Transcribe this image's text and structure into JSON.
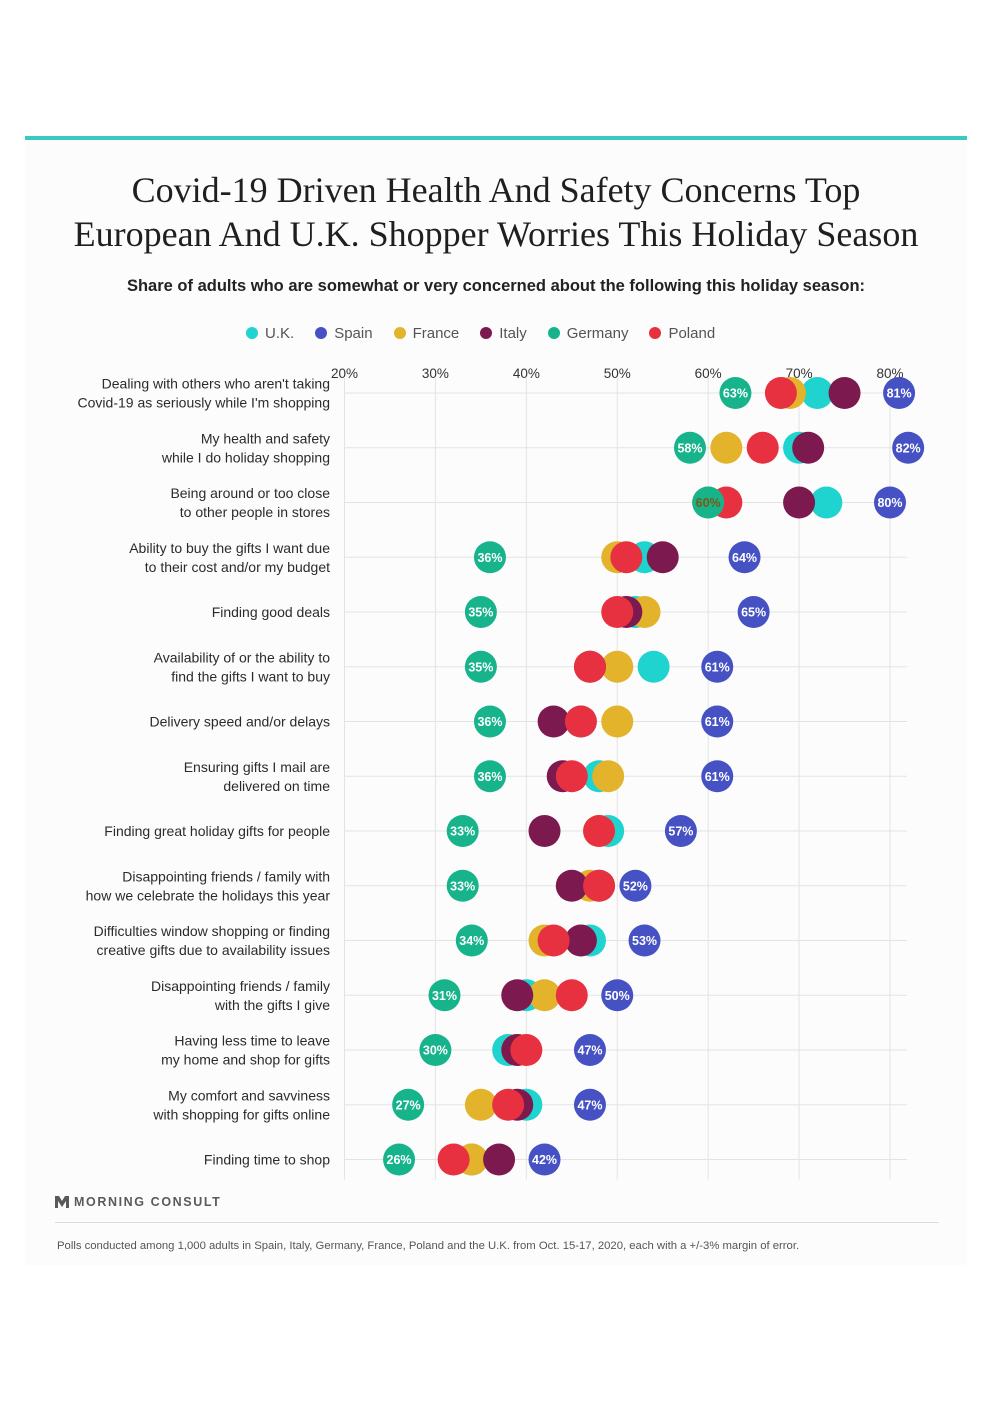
{
  "title_line1": "Covid-19 Driven Health And Safety Concerns Top",
  "title_line2": "European And U.K. Shopper Worries This Holiday Season",
  "subtitle": "Share of adults who are somewhat or very concerned about the following this holiday season:",
  "legend": [
    {
      "name": "U.K.",
      "color": "#1fd3cf"
    },
    {
      "name": "Spain",
      "color": "#4652c4"
    },
    {
      "name": "France",
      "color": "#e2b32b"
    },
    {
      "name": "Italy",
      "color": "#7c1a4f"
    },
    {
      "name": "Germany",
      "color": "#17b48c"
    },
    {
      "name": "Poland",
      "color": "#e83140"
    }
  ],
  "chart_data": {
    "type": "dot-plot",
    "x_axis": {
      "min": 20,
      "max": 80,
      "tick_labels": [
        "20%",
        "30%",
        "40%",
        "50%",
        "60%",
        "70%",
        "80%"
      ]
    },
    "categories": [
      {
        "label_line1": "Dealing with others who aren't taking",
        "label_line2": "Covid-19 as seriously while I'm shopping",
        "values": {
          "U.K.": 72,
          "Spain": 81,
          "France": 69,
          "Italy": 75,
          "Germany": 63,
          "Poland": 68
        },
        "labels": [
          {
            "series": "Germany",
            "text": "63%"
          },
          {
            "series": "Spain",
            "text": "81%"
          }
        ]
      },
      {
        "label_line1": "My health and safety",
        "label_line2": "while I do holiday shopping",
        "values": {
          "U.K.": 70,
          "Spain": 82,
          "France": 62,
          "Italy": 71,
          "Germany": 58,
          "Poland": 66
        },
        "labels": [
          {
            "series": "Germany",
            "text": "58%"
          },
          {
            "series": "Spain",
            "text": "82%"
          }
        ]
      },
      {
        "label_line1": "Being around or too close",
        "label_line2": "to other people in stores",
        "values": {
          "U.K.": 73,
          "Spain": 80,
          "France": 60,
          "Italy": 70,
          "Germany": 60,
          "Poland": 62
        },
        "labels": [
          {
            "series": "France",
            "text": "60%"
          },
          {
            "series": "Spain",
            "text": "80%"
          }
        ]
      },
      {
        "label_line1": "Ability to buy the gifts I want due",
        "label_line2": "to their cost and/or my budget",
        "values": {
          "U.K.": 53,
          "Spain": 64,
          "France": 50,
          "Italy": 55,
          "Germany": 36,
          "Poland": 51
        },
        "labels": [
          {
            "series": "Germany",
            "text": "36%"
          },
          {
            "series": "Spain",
            "text": "64%"
          }
        ]
      },
      {
        "label_line1": "Finding good deals",
        "label_line2": "",
        "values": {
          "U.K.": 52,
          "Spain": 65,
          "France": 53,
          "Italy": 51,
          "Germany": 35,
          "Poland": 50
        },
        "labels": [
          {
            "series": "Germany",
            "text": "35%"
          },
          {
            "series": "Spain",
            "text": "65%"
          }
        ]
      },
      {
        "label_line1": "Availability of or the ability to",
        "label_line2": "find the gifts I want to buy",
        "values": {
          "U.K.": 54,
          "Spain": 61,
          "France": 50,
          "Italy": 47,
          "Germany": 35,
          "Poland": 47
        },
        "labels": [
          {
            "series": "Germany",
            "text": "35%"
          },
          {
            "series": "Spain",
            "text": "61%"
          }
        ]
      },
      {
        "label_line1": "Delivery speed and/or delays",
        "label_line2": "",
        "values": {
          "U.K.": 46,
          "Spain": 61,
          "France": 50,
          "Italy": 43,
          "Germany": 36,
          "Poland": 46
        },
        "labels": [
          {
            "series": "Germany",
            "text": "36%"
          },
          {
            "series": "Spain",
            "text": "61%"
          }
        ]
      },
      {
        "label_line1": "Ensuring gifts I mail are",
        "label_line2": "delivered on time",
        "values": {
          "U.K.": 48,
          "Spain": 61,
          "France": 49,
          "Italy": 44,
          "Germany": 36,
          "Poland": 45
        },
        "labels": [
          {
            "series": "Germany",
            "text": "36%"
          },
          {
            "series": "Spain",
            "text": "61%"
          }
        ]
      },
      {
        "label_line1": "Finding great holiday gifts for people",
        "label_line2": "",
        "values": {
          "U.K.": 49,
          "Spain": 57,
          "France": 48,
          "Italy": 42,
          "Germany": 33,
          "Poland": 48
        },
        "labels": [
          {
            "series": "Germany",
            "text": "33%"
          },
          {
            "series": "Spain",
            "text": "57%"
          }
        ]
      },
      {
        "label_line1": "Disappointing friends / family with",
        "label_line2": "how we celebrate the holidays this year",
        "values": {
          "U.K.": 48,
          "Spain": 52,
          "France": 47,
          "Italy": 45,
          "Germany": 33,
          "Poland": 48
        },
        "labels": [
          {
            "series": "Germany",
            "text": "33%"
          },
          {
            "series": "Spain",
            "text": "52%"
          }
        ]
      },
      {
        "label_line1": "Difficulties window shopping or finding",
        "label_line2": "creative gifts due to availability issues",
        "values": {
          "U.K.": 47,
          "Spain": 53,
          "France": 42,
          "Italy": 46,
          "Germany": 34,
          "Poland": 43
        },
        "labels": [
          {
            "series": "Germany",
            "text": "34%"
          },
          {
            "series": "Spain",
            "text": "53%"
          }
        ]
      },
      {
        "label_line1": "Disappointing friends / family",
        "label_line2": "with the gifts I give",
        "values": {
          "U.K.": 40,
          "Spain": 50,
          "France": 42,
          "Italy": 39,
          "Germany": 31,
          "Poland": 45
        },
        "labels": [
          {
            "series": "Germany",
            "text": "31%"
          },
          {
            "series": "Spain",
            "text": "50%"
          }
        ]
      },
      {
        "label_line1": "Having less time to leave",
        "label_line2": "my home and shop for gifts",
        "values": {
          "U.K.": 38,
          "Spain": 47,
          "France": 39,
          "Italy": 39,
          "Germany": 30,
          "Poland": 40
        },
        "labels": [
          {
            "series": "Germany",
            "text": "30%"
          },
          {
            "series": "Spain",
            "text": "47%"
          }
        ]
      },
      {
        "label_line1": "My comfort and savviness",
        "label_line2": "with shopping for gifts online",
        "values": {
          "U.K.": 40,
          "Spain": 47,
          "France": 35,
          "Italy": 39,
          "Germany": 27,
          "Poland": 38
        },
        "labels": [
          {
            "series": "Germany",
            "text": "27%"
          },
          {
            "series": "Spain",
            "text": "47%"
          }
        ]
      },
      {
        "label_line1": "Finding time to shop",
        "label_line2": "",
        "values": {
          "U.K.": 34,
          "Spain": 42,
          "France": 34,
          "Italy": 37,
          "Germany": 26,
          "Poland": 32
        },
        "labels": [
          {
            "series": "Germany",
            "text": "26%"
          },
          {
            "series": "Spain",
            "text": "42%"
          }
        ]
      }
    ],
    "draw_order": [
      "U.K.",
      "France",
      "Italy",
      "Poland",
      "Germany",
      "Spain"
    ]
  },
  "brand": "MORNING CONSULT",
  "footnote": "Polls conducted among 1,000 adults in Spain, Italy, Germany, France, Poland and the U.K. from Oct. 15-17, 2020, each with a +/-3% margin of error."
}
